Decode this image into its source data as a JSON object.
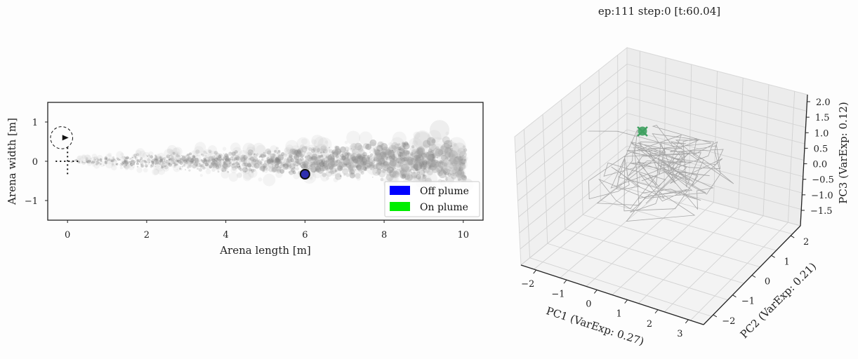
{
  "title": "ep:111 step:0 [t:60.04]",
  "colors": {
    "off_plume": "#0000ff",
    "on_plume": "#00ee00",
    "plume": "#808080",
    "agent_marker": "#2f2fb0",
    "pca_point": "#3fa060",
    "trajectory": "#9a9a9a"
  },
  "chart_data": [
    {
      "type": "scatter",
      "name": "arena",
      "xlabel": "Arena length [m]",
      "ylabel": "Arena width [m]",
      "xlim": [
        -0.5,
        10.5
      ],
      "ylim": [
        -1.5,
        1.5
      ],
      "xticks": [
        0,
        2,
        4,
        6,
        8,
        10
      ],
      "xtick_labels": [
        "0",
        "2",
        "4",
        "6",
        "8",
        "10"
      ],
      "yticks": [
        1,
        0,
        -1
      ],
      "ytick_labels": [
        "1",
        "0",
        "−1"
      ],
      "legend": {
        "placement": "lower-right",
        "entries": [
          {
            "label": "Off plume",
            "color": "#0000ff"
          },
          {
            "label": "On plume",
            "color": "#00ee00"
          }
        ]
      },
      "agent": {
        "x": 6.0,
        "y": -0.33,
        "state": "off_plume"
      },
      "start_circle": {
        "x": -0.15,
        "y": 0.6,
        "r": 0.28
      },
      "plume_envelope": [
        {
          "x": 0.1,
          "half_width": 0.06
        },
        {
          "x": 1.0,
          "half_width": 0.12
        },
        {
          "x": 2.0,
          "half_width": 0.2
        },
        {
          "x": 4.0,
          "half_width": 0.3
        },
        {
          "x": 6.0,
          "half_width": 0.4
        },
        {
          "x": 8.0,
          "half_width": 0.5
        },
        {
          "x": 10.0,
          "half_width": 0.6
        }
      ]
    },
    {
      "type": "line3d",
      "name": "pca",
      "xlabel": "PC1 (VarExp: 0.27)",
      "ylabel": "PC2 (VarExp: 0.21)",
      "zlabel": "PC3 (VarExp: 0.12)",
      "x_ticks": [
        "−2",
        "−1",
        "0",
        "1",
        "2",
        "3"
      ],
      "y_ticks": [
        "−2",
        "−1",
        "0",
        "1",
        "2"
      ],
      "z_ticks": [
        "2.0",
        "1.5",
        "1.0",
        "0.5",
        "0.0",
        "−0.5",
        "−1.0",
        "−1.5"
      ],
      "current_point": {
        "label": "step 0",
        "color": "#3fa060"
      }
    }
  ]
}
